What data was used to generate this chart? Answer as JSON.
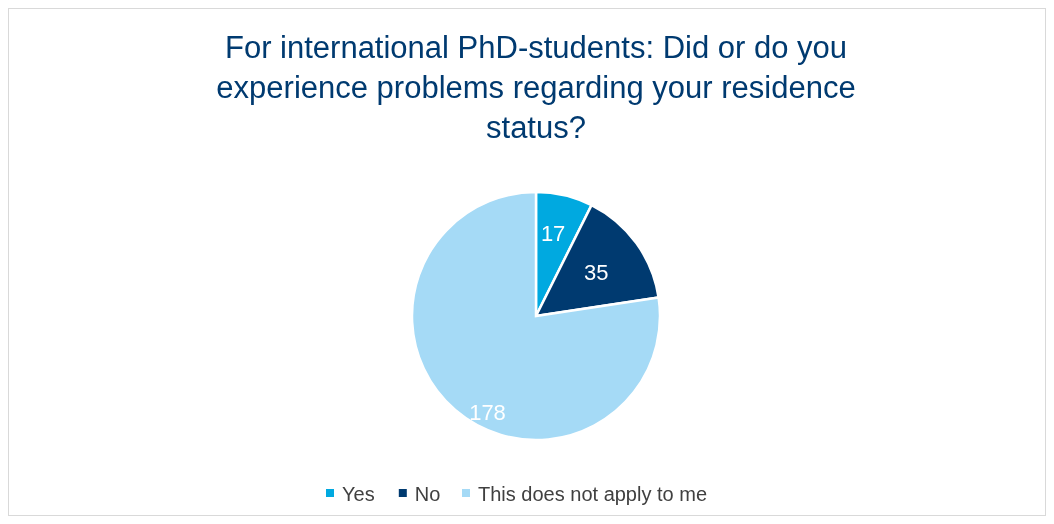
{
  "chart_data": {
    "type": "pie",
    "title": "For international PhD-students: Did or do you experience problems regarding your residence status?",
    "categories": [
      "Yes",
      "No",
      "This does not apply to me"
    ],
    "values": [
      17,
      35,
      178
    ],
    "colors": [
      "#00a9e0",
      "#003a70",
      "#a5daf6"
    ],
    "data_labels": true,
    "legend": "bottom"
  }
}
